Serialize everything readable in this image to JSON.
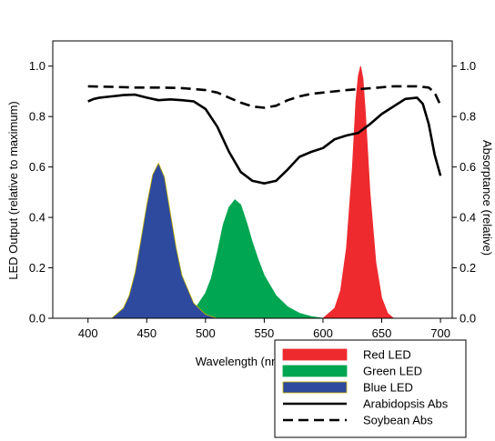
{
  "chart_data": {
    "type": "area",
    "xlabel": "Wavelength (nm)",
    "ylabel_left": "LED Output (relative to maximum)",
    "ylabel_right": "Absorptance (relative)",
    "xlim": [
      370,
      710
    ],
    "ylim": [
      0,
      1.1
    ],
    "x_ticks": [
      400,
      450,
      500,
      550,
      600,
      650,
      700
    ],
    "y_ticks": [
      0.0,
      0.2,
      0.4,
      0.6,
      0.8,
      1.0
    ],
    "y_tick_labels": [
      "0.0",
      "0.2",
      "0.4",
      "0.6",
      "0.8",
      "1.0"
    ],
    "grid": false,
    "legend_placement": "bottom-right",
    "colors": {
      "red": "#ee2a2e",
      "green": "#00a651",
      "blue": "#2e4a9e",
      "blue_edge": "#c8b400",
      "line": "#000000"
    },
    "series": [
      {
        "name": "Red LED",
        "kind": "filled",
        "color": "#ee2a2e",
        "x": [
          600,
          610,
          615,
          620,
          625,
          628,
          630,
          632,
          634,
          636,
          640,
          645,
          650,
          655,
          660
        ],
        "y": [
          0.0,
          0.04,
          0.11,
          0.28,
          0.6,
          0.86,
          0.96,
          1.0,
          0.95,
          0.82,
          0.5,
          0.22,
          0.08,
          0.02,
          0.0
        ]
      },
      {
        "name": "Green LED",
        "kind": "filled",
        "color": "#00a651",
        "x": [
          480,
          490,
          500,
          505,
          510,
          515,
          520,
          525,
          530,
          535,
          540,
          545,
          550,
          560,
          570,
          580,
          590,
          600
        ],
        "y": [
          0.0,
          0.03,
          0.1,
          0.16,
          0.26,
          0.37,
          0.44,
          0.47,
          0.45,
          0.38,
          0.3,
          0.23,
          0.17,
          0.09,
          0.045,
          0.02,
          0.007,
          0.0
        ]
      },
      {
        "name": "Blue LED",
        "kind": "filled",
        "color": "#2e4a9e",
        "x": [
          420,
          430,
          435,
          440,
          445,
          450,
          455,
          460,
          465,
          470,
          475,
          480,
          490,
          500,
          510
        ],
        "y": [
          0.0,
          0.04,
          0.09,
          0.18,
          0.31,
          0.45,
          0.57,
          0.615,
          0.56,
          0.42,
          0.28,
          0.17,
          0.06,
          0.015,
          0.0
        ]
      },
      {
        "name": "Arabidopsis Abs",
        "kind": "line",
        "dash": "solid",
        "x": [
          400,
          405,
          410,
          420,
          430,
          440,
          450,
          460,
          470,
          480,
          490,
          500,
          510,
          520,
          530,
          540,
          550,
          560,
          570,
          580,
          590,
          600,
          610,
          620,
          630,
          640,
          650,
          660,
          670,
          680,
          685,
          690,
          695,
          700
        ],
        "y": [
          0.86,
          0.87,
          0.875,
          0.88,
          0.885,
          0.887,
          0.875,
          0.865,
          0.868,
          0.865,
          0.86,
          0.83,
          0.76,
          0.66,
          0.58,
          0.545,
          0.535,
          0.545,
          0.59,
          0.64,
          0.66,
          0.675,
          0.71,
          0.725,
          0.735,
          0.77,
          0.81,
          0.84,
          0.87,
          0.875,
          0.85,
          0.77,
          0.65,
          0.565
        ]
      },
      {
        "name": "Soybean Abs",
        "kind": "line",
        "dash": "dashed",
        "x": [
          400,
          420,
          440,
          460,
          480,
          500,
          510,
          520,
          530,
          540,
          550,
          560,
          570,
          580,
          590,
          600,
          620,
          640,
          660,
          680,
          690,
          695,
          700
        ],
        "y": [
          0.92,
          0.918,
          0.915,
          0.915,
          0.913,
          0.905,
          0.895,
          0.875,
          0.855,
          0.84,
          0.835,
          0.843,
          0.865,
          0.88,
          0.89,
          0.895,
          0.905,
          0.912,
          0.92,
          0.92,
          0.915,
          0.895,
          0.845
        ]
      }
    ]
  },
  "legend": {
    "items": [
      {
        "label": "Red LED",
        "swatch": "fill",
        "color": "#ee2a2e"
      },
      {
        "label": "Green LED",
        "swatch": "fill",
        "color": "#00a651"
      },
      {
        "label": "Blue LED",
        "swatch": "fill",
        "color": "#2e4a9e"
      },
      {
        "label": "Arabidopsis Abs",
        "swatch": "solid-line",
        "color": "#000000"
      },
      {
        "label": "Soybean Abs",
        "swatch": "dashed-line",
        "color": "#000000"
      }
    ]
  }
}
